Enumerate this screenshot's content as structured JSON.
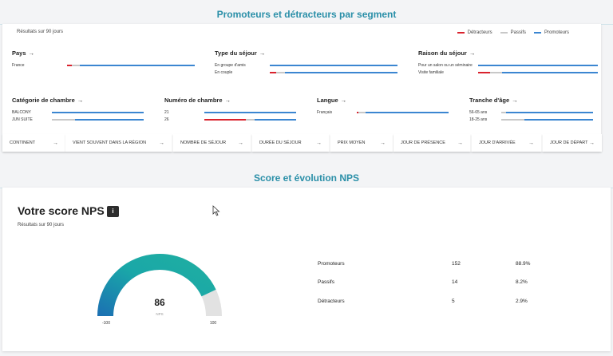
{
  "segments": {
    "title": "Promoteurs et détracteurs par segment",
    "period": "Résultats sur 90 jours",
    "legend": [
      {
        "label": "Détracteurs",
        "color": "#d9232e"
      },
      {
        "label": "Passifs",
        "color": "#c8c8c8"
      },
      {
        "label": "Promoteurs",
        "color": "#3b86d1"
      }
    ],
    "cards": [
      {
        "title": "Pays",
        "rows": [
          {
            "label": "France",
            "detract": 0.04,
            "passive": 0.06,
            "promo": 0.9
          }
        ]
      },
      {
        "title": "Type du séjour",
        "rows": [
          {
            "label": "En groupe d'amis",
            "detract": 0.0,
            "passive": 0.0,
            "promo": 1.0
          },
          {
            "label": "En couple",
            "detract": 0.05,
            "passive": 0.07,
            "promo": 0.88
          }
        ]
      },
      {
        "title": "Raison du séjour",
        "rows": [
          {
            "label": "Pour un salon ou un séminaire",
            "detract": 0.0,
            "passive": 0.0,
            "promo": 1.0
          },
          {
            "label": "Visite familiale",
            "detract": 0.1,
            "passive": 0.1,
            "promo": 0.8
          }
        ]
      },
      {
        "title": "Catégorie de chambre",
        "rows": [
          {
            "label": "BALCONY",
            "detract": 0.0,
            "passive": 0.0,
            "promo": 1.0
          },
          {
            "label": "JUN SUITE",
            "detract": 0.0,
            "passive": 0.25,
            "promo": 0.75
          }
        ]
      },
      {
        "title": "Numéro de chambre",
        "rows": [
          {
            "label": "21",
            "detract": 0.0,
            "passive": 0.0,
            "promo": 1.0
          },
          {
            "label": "26",
            "detract": 0.45,
            "passive": 0.1,
            "promo": 0.45
          }
        ]
      },
      {
        "title": "Langue",
        "rows": [
          {
            "label": "Français",
            "detract": 0.02,
            "passive": 0.08,
            "promo": 0.9
          }
        ]
      },
      {
        "title": "Tranche d'âge",
        "rows": [
          {
            "label": "56-65 ans",
            "detract": 0.0,
            "passive": 0.05,
            "promo": 0.95
          },
          {
            "label": "18-25 ans",
            "detract": 0.0,
            "passive": 0.25,
            "promo": 0.75
          }
        ]
      }
    ],
    "pills": [
      "CONTINENT",
      "VIENT SOUVENT DANS LA RÉGION",
      "NOMBRE DE SÉJOUR",
      "DURÉE DU SÉJOUR",
      "PRIX MOYEN",
      "JOUR DE PRÉSENCE",
      "JOUR D'ARRIVÉE",
      "JOUR DE DÉPART"
    ]
  },
  "nps": {
    "section_title": "Score et évolution NPS",
    "title": "Votre score NPS",
    "info": "i",
    "period": "Résultats sur 90 jours",
    "gauge": {
      "value": "86",
      "unit": "NPS",
      "min_label": "-100",
      "max_label": "100",
      "level": 0.86
    },
    "stats": [
      {
        "label": "Promoteurs",
        "count": "152",
        "pct": "88.9%"
      },
      {
        "label": "Passifs",
        "count": "14",
        "pct": "8.2%"
      },
      {
        "label": "Détracteurs",
        "count": "5",
        "pct": "2.9%"
      }
    ]
  }
}
